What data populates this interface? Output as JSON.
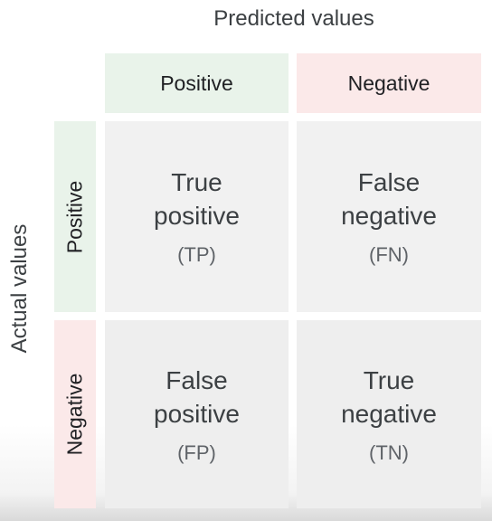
{
  "axes": {
    "predicted_title": "Predicted values",
    "actual_title": "Actual values"
  },
  "columns": {
    "positive": "Positive",
    "negative": "Negative"
  },
  "rows": {
    "positive": "Positive",
    "negative": "Negative"
  },
  "cells": {
    "tp": {
      "line1": "True",
      "line2": "positive",
      "abbr": "(TP)"
    },
    "fn": {
      "line1": "False",
      "line2": "negative",
      "abbr": "(FN)"
    },
    "fp": {
      "line1": "False",
      "line2": "positive",
      "abbr": "(FP)"
    },
    "tn": {
      "line1": "True",
      "line2": "negative",
      "abbr": "(TN)"
    }
  },
  "colors": {
    "positive_header_bg": "#e9f3ea",
    "negative_header_bg": "#fbe9e9",
    "cell_bg": "#f1f1f1",
    "text": "#3c4043"
  }
}
